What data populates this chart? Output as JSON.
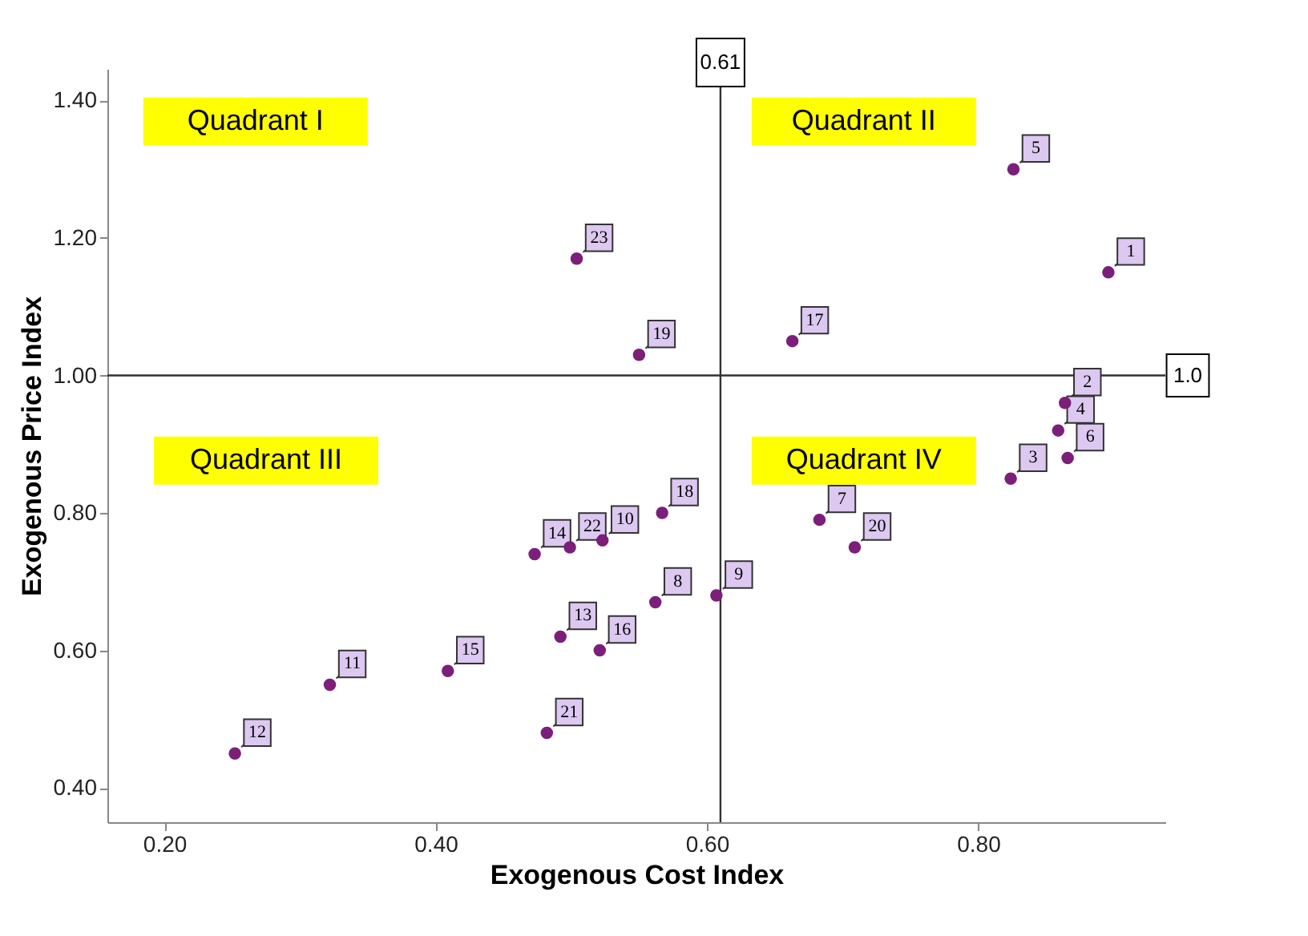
{
  "chart_data": {
    "type": "scatter",
    "xlabel": "Exogenous Cost Index",
    "ylabel": "Exogenous Price Index",
    "x": [
      0.896,
      0.864,
      0.824,
      0.859,
      0.826,
      0.866,
      0.683,
      0.562,
      0.607,
      0.523,
      0.322,
      0.252,
      0.492,
      0.473,
      0.409,
      0.521,
      0.663,
      0.567,
      0.55,
      0.709,
      0.482,
      0.499,
      0.504
    ],
    "values": [
      1.15,
      0.96,
      0.85,
      0.92,
      1.3,
      0.88,
      0.79,
      0.67,
      0.68,
      0.76,
      0.55,
      0.45,
      0.62,
      0.74,
      0.57,
      0.6,
      1.05,
      0.8,
      1.03,
      0.75,
      0.48,
      0.75,
      1.17
    ],
    "color": "#7b1f7a",
    "marker": "circle",
    "xlim": [
      0.158,
      0.938
    ],
    "xticks": [
      {
        "value": 0.2,
        "label": "0.20"
      },
      {
        "value": 0.4,
        "label": "0.40"
      },
      {
        "value": 0.6,
        "label": "0.60"
      },
      {
        "value": 0.8,
        "label": "0.80"
      }
    ],
    "ylim": [
      0.35,
      1.446
    ],
    "yticks": [
      {
        "value": 0.4,
        "label": "0.40"
      },
      {
        "value": 0.6,
        "label": "0.60"
      },
      {
        "value": 0.8,
        "label": "0.80"
      },
      {
        "value": 1.0,
        "label": "1.00"
      },
      {
        "value": 1.2,
        "label": "1.20"
      },
      {
        "value": 1.4,
        "label": "1.40"
      }
    ],
    "grid": false,
    "ref_lines": [
      {
        "axis": "x",
        "value": 0.61,
        "label": "0.61",
        "color": "#333333"
      },
      {
        "axis": "y",
        "value": 1.0,
        "label": "1.0",
        "color": "#333333"
      }
    ],
    "annotations": [
      "Quadrant I",
      "Quadrant II",
      "Quadrant III",
      "Quadrant IV",
      {
        "text": "1",
        "x": 0.896,
        "y": 1.15
      },
      {
        "text": "2",
        "x": 0.864,
        "y": 0.96
      },
      {
        "text": "3",
        "x": 0.824,
        "y": 0.85
      },
      {
        "text": "4",
        "x": 0.859,
        "y": 0.92
      },
      {
        "text": "5",
        "x": 0.826,
        "y": 1.3
      },
      {
        "text": "6",
        "x": 0.866,
        "y": 0.88
      },
      {
        "text": "7",
        "x": 0.683,
        "y": 0.79
      },
      {
        "text": "8",
        "x": 0.562,
        "y": 0.67
      },
      {
        "text": "9",
        "x": 0.607,
        "y": 0.68
      },
      {
        "text": "10",
        "x": 0.523,
        "y": 0.76
      },
      {
        "text": "11",
        "x": 0.322,
        "y": 0.55
      },
      {
        "text": "12",
        "x": 0.252,
        "y": 0.45
      },
      {
        "text": "13",
        "x": 0.492,
        "y": 0.62
      },
      {
        "text": "14",
        "x": 0.473,
        "y": 0.74
      },
      {
        "text": "15",
        "x": 0.409,
        "y": 0.57
      },
      {
        "text": "16",
        "x": 0.521,
        "y": 0.6
      },
      {
        "text": "17",
        "x": 0.663,
        "y": 1.05
      },
      {
        "text": "18",
        "x": 0.567,
        "y": 0.8
      },
      {
        "text": "19",
        "x": 0.55,
        "y": 1.03
      },
      {
        "text": "20",
        "x": 0.709,
        "y": 0.75
      },
      {
        "text": "21",
        "x": 0.482,
        "y": 0.48
      },
      {
        "text": "22",
        "x": 0.499,
        "y": 0.75
      },
      {
        "text": "23",
        "x": 0.504,
        "y": 1.17
      }
    ]
  }
}
